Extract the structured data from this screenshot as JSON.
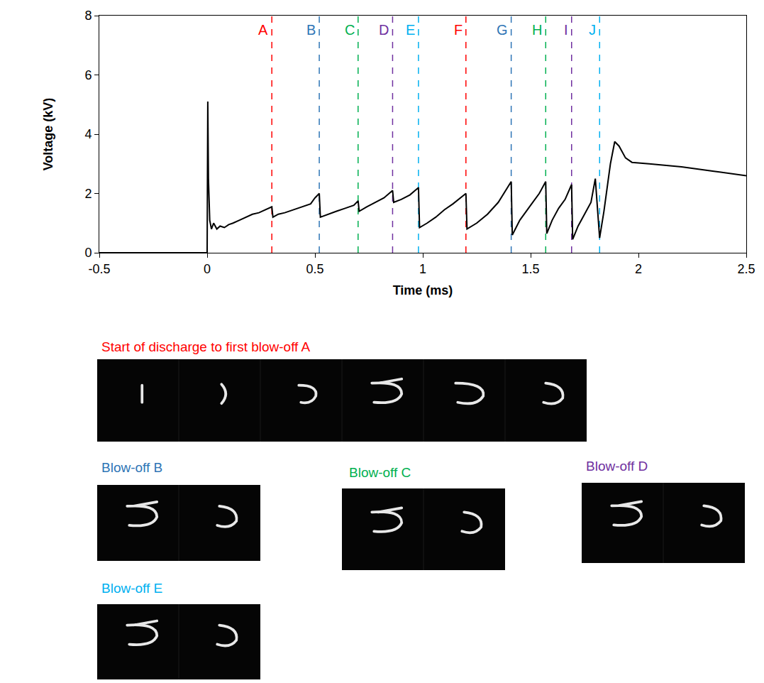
{
  "chart_data": {
    "type": "line",
    "x_label": "Time (ms)",
    "y_label": "Voltage (kV)",
    "x": [
      -0.5,
      0,
      0.003,
      0.006,
      0.012,
      0.02,
      0.03,
      0.045,
      0.06,
      0.08,
      0.1,
      0.12,
      0.15,
      0.18,
      0.21,
      0.24,
      0.27,
      0.3,
      0.305,
      0.33,
      0.36,
      0.4,
      0.44,
      0.48,
      0.5,
      0.52,
      0.525,
      0.56,
      0.6,
      0.64,
      0.68,
      0.7,
      0.705,
      0.74,
      0.78,
      0.82,
      0.86,
      0.865,
      0.9,
      0.94,
      0.98,
      0.985,
      1.02,
      1.06,
      1.1,
      1.14,
      1.2,
      1.205,
      1.25,
      1.3,
      1.35,
      1.41,
      1.415,
      1.45,
      1.5,
      1.54,
      1.57,
      1.575,
      1.6,
      1.63,
      1.66,
      1.69,
      1.695,
      1.72,
      1.75,
      1.78,
      1.8,
      1.82,
      1.84,
      1.87,
      1.89,
      1.91,
      1.94,
      1.97,
      2.05,
      2.2,
      2.35,
      2.5
    ],
    "series": [
      {
        "color": "#000000",
        "values": [
          0,
          0,
          5.1,
          2.5,
          1.1,
          0.8,
          1.0,
          0.8,
          0.9,
          0.85,
          0.95,
          1.0,
          1.1,
          1.2,
          1.3,
          1.35,
          1.45,
          1.55,
          1.2,
          1.3,
          1.35,
          1.45,
          1.55,
          1.65,
          1.85,
          2.0,
          1.2,
          1.3,
          1.4,
          1.5,
          1.6,
          1.75,
          1.4,
          1.55,
          1.7,
          1.85,
          2.1,
          1.7,
          1.8,
          1.95,
          2.2,
          0.85,
          1.0,
          1.2,
          1.45,
          1.65,
          2.0,
          0.8,
          1.0,
          1.3,
          1.7,
          2.4,
          0.6,
          1.1,
          1.6,
          2.0,
          2.4,
          0.65,
          1.1,
          1.5,
          1.8,
          2.3,
          0.45,
          0.9,
          1.3,
          1.7,
          2.5,
          0.5,
          1.4,
          3.0,
          3.75,
          3.6,
          3.2,
          3.05,
          3.0,
          2.9,
          2.75,
          2.6
        ]
      }
    ],
    "xlim": [
      -0.5,
      2.5
    ],
    "xticks": [
      -0.5,
      0,
      0.5,
      1,
      1.5,
      2,
      2.5
    ],
    "ylim": [
      0,
      8
    ],
    "yticks": [
      0,
      2,
      4,
      6,
      8
    ],
    "grid": false,
    "markers": [
      {
        "label": "A",
        "x": 0.3,
        "color": "#ff0000"
      },
      {
        "label": "B",
        "x": 0.52,
        "color": "#2e75b6"
      },
      {
        "label": "C",
        "x": 0.7,
        "color": "#00b050"
      },
      {
        "label": "D",
        "x": 0.86,
        "color": "#7030a0"
      },
      {
        "label": "E",
        "x": 0.98,
        "color": "#00b0f0"
      },
      {
        "label": "F",
        "x": 1.2,
        "color": "#ff0000"
      },
      {
        "label": "G",
        "x": 1.41,
        "color": "#2e75b6"
      },
      {
        "label": "H",
        "x": 1.57,
        "color": "#00b050"
      },
      {
        "label": "I",
        "x": 1.69,
        "color": "#7030a0"
      },
      {
        "label": "J",
        "x": 1.82,
        "color": "#00b0f0"
      }
    ]
  },
  "image_panels": [
    {
      "title": "Start of discharge to first blow-off A",
      "color": "#ff0000",
      "frames": 6
    },
    {
      "title": "Blow-off B",
      "color": "#2e75b6",
      "frames": 2
    },
    {
      "title": "Blow-off C",
      "color": "#00b050",
      "frames": 2
    },
    {
      "title": "Blow-off D",
      "color": "#7030a0",
      "frames": 2
    },
    {
      "title": "Blow-off E",
      "color": "#00b0f0",
      "frames": 2
    }
  ]
}
